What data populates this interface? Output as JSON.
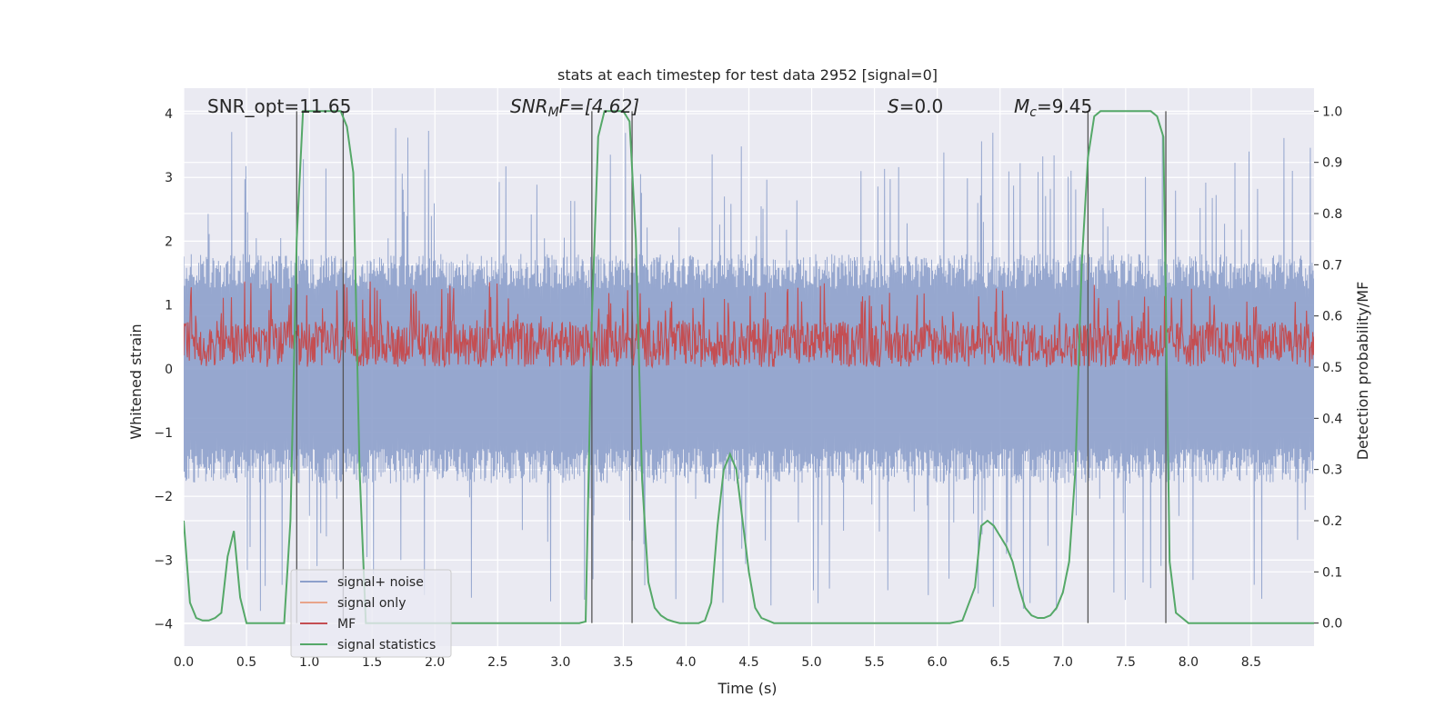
{
  "chart_data": {
    "type": "line",
    "title": "stats at each timestep for test data 2952 [signal=0]",
    "xlabel": "Time (s)",
    "ylabel": "Whitened strain",
    "ylabel_right": "Detection probability/MF",
    "xlim": [
      0,
      9.0
    ],
    "ylim": [
      -4.35,
      4.4
    ],
    "ylim_right": [
      -0.045,
      1.045
    ],
    "grid": true,
    "legend_position": "lower-left",
    "x_ticks": [
      "0.0",
      "0.5",
      "1.0",
      "1.5",
      "2.0",
      "2.5",
      "3.0",
      "3.5",
      "4.0",
      "4.5",
      "5.0",
      "5.5",
      "6.0",
      "6.5",
      "7.0",
      "7.5",
      "8.0",
      "8.5"
    ],
    "y_ticks": [
      "4",
      "3",
      "2",
      "1",
      "0",
      "−1",
      "−2",
      "−3",
      "−4"
    ],
    "y_ticks_right": [
      "1.0",
      "0.9",
      "0.8",
      "0.7",
      "0.6",
      "0.5",
      "0.4",
      "0.3",
      "0.2",
      "0.1",
      "0.0"
    ],
    "annotations": [
      {
        "id": "snr_opt",
        "base": "SNR_opt=11.65",
        "sub": "",
        "tail": ""
      },
      {
        "id": "snr_mf",
        "base": "SNR",
        "sub": "M",
        "tail": "F=[4.62]"
      },
      {
        "id": "s",
        "base": "S",
        "sub": "",
        "tail": "=0.0"
      },
      {
        "id": "mc",
        "base": "M",
        "sub": "c",
        "tail": "=9.45"
      }
    ],
    "series": [
      {
        "name": "signal+ noise",
        "color": "#8da0cb",
        "axis": "left",
        "envelope": "±1.6 core, peaks to ±3.8"
      },
      {
        "name": "signal only",
        "color": "#e8a48a",
        "axis": "left",
        "values": []
      },
      {
        "name": "MF",
        "color": "#c44e52",
        "axis": "right",
        "band": [
          0.5,
          0.62
        ]
      },
      {
        "name": "signal statistics",
        "color": "#55a868",
        "axis": "right",
        "x": [
          0.0,
          0.05,
          0.1,
          0.15,
          0.2,
          0.25,
          0.3,
          0.35,
          0.4,
          0.45,
          0.5,
          0.55,
          0.6,
          0.65,
          0.7,
          0.75,
          0.8,
          0.85,
          0.9,
          0.95,
          1.0,
          1.05,
          1.1,
          1.15,
          1.2,
          1.25,
          1.3,
          1.35,
          1.4,
          1.45,
          1.5,
          2.0,
          2.5,
          3.0,
          3.15,
          3.2,
          3.25,
          3.3,
          3.35,
          3.4,
          3.45,
          3.5,
          3.55,
          3.6,
          3.65,
          3.7,
          3.75,
          3.8,
          3.85,
          3.9,
          3.95,
          4.0,
          4.05,
          4.1,
          4.15,
          4.2,
          4.25,
          4.3,
          4.35,
          4.4,
          4.45,
          4.5,
          4.55,
          4.6,
          4.65,
          4.7,
          4.75,
          5.0,
          5.5,
          6.0,
          6.1,
          6.2,
          6.3,
          6.35,
          6.4,
          6.45,
          6.5,
          6.55,
          6.6,
          6.65,
          6.7,
          6.75,
          6.8,
          6.85,
          6.9,
          6.95,
          7.0,
          7.05,
          7.1,
          7.15,
          7.2,
          7.25,
          7.3,
          7.35,
          7.4,
          7.45,
          7.5,
          7.55,
          7.6,
          7.65,
          7.7,
          7.75,
          7.8,
          7.85,
          7.9,
          7.95,
          8.0,
          8.1,
          8.2,
          8.3,
          8.5,
          9.0
        ],
        "values": [
          0.2,
          0.04,
          0.01,
          0.005,
          0.005,
          0.01,
          0.02,
          0.13,
          0.18,
          0.05,
          0.0,
          0.0,
          0.0,
          0.0,
          0.0,
          0.0,
          0.0,
          0.2,
          0.75,
          1.0,
          1.0,
          1.0,
          1.0,
          1.0,
          1.0,
          1.0,
          0.97,
          0.88,
          0.3,
          0.0,
          0.0,
          0.0,
          0.0,
          0.0,
          0.0,
          0.003,
          0.6,
          0.95,
          1.0,
          1.0,
          1.0,
          1.0,
          0.98,
          0.75,
          0.28,
          0.08,
          0.03,
          0.015,
          0.007,
          0.003,
          0.0,
          0.0,
          0.0,
          0.0,
          0.005,
          0.04,
          0.19,
          0.3,
          0.33,
          0.3,
          0.2,
          0.1,
          0.03,
          0.01,
          0.005,
          0.0,
          0.0,
          0.0,
          0.0,
          0.0,
          0.0,
          0.005,
          0.07,
          0.19,
          0.2,
          0.19,
          0.17,
          0.15,
          0.12,
          0.07,
          0.03,
          0.015,
          0.01,
          0.01,
          0.015,
          0.03,
          0.06,
          0.12,
          0.3,
          0.7,
          0.91,
          0.99,
          1.0,
          1.0,
          1.0,
          1.0,
          1.0,
          1.0,
          1.0,
          1.0,
          1.0,
          0.99,
          0.95,
          0.12,
          0.02,
          0.01,
          0.0,
          0.0,
          0.0,
          0.0,
          0.0,
          0.0
        ]
      }
    ],
    "vertical_markers": [
      0.9,
      1.27,
      3.25,
      3.57,
      7.2,
      7.82
    ]
  },
  "colors": {
    "plot_background": "#eaeaf2",
    "grid": "#ffffff",
    "noise": "#8da0cb",
    "mf": "#c44e52",
    "signal_only": "#e8a48a",
    "statistics": "#55a868",
    "markers": "#555555"
  }
}
